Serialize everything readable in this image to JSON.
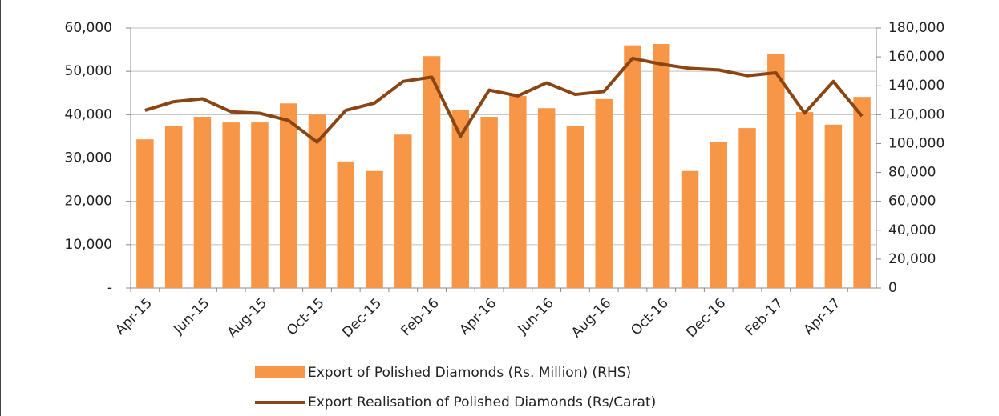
{
  "chart_data": {
    "type": "bar_line",
    "categories": [
      "Apr-15",
      null,
      "Jun-15",
      null,
      "Aug-15",
      null,
      "Oct-15",
      null,
      "Dec-15",
      null,
      "Feb-16",
      null,
      "Apr-16",
      null,
      "Jun-16",
      null,
      "Aug-16",
      null,
      "Oct-16",
      null,
      "Dec-16",
      null,
      "Feb-17",
      null,
      "Apr-17",
      null
    ],
    "series": [
      {
        "name": "Export of Polished Diamonds (Rs. Million) (RHS)",
        "type": "bar",
        "color": "#f79646",
        "values": [
          34300,
          37300,
          39500,
          38200,
          38200,
          42600,
          40000,
          29200,
          27000,
          35400,
          53500,
          41000,
          39500,
          44300,
          41500,
          37300,
          43600,
          56000,
          56300,
          27000,
          33600,
          36900,
          54100,
          40600,
          37700,
          44100
        ]
      },
      {
        "name": "Export Realisation of Polished Diamonds (Rs/Carat)",
        "type": "line",
        "color": "#8b4513",
        "axis": "y2",
        "values": [
          123000,
          129000,
          131000,
          122000,
          121000,
          116000,
          101000,
          123000,
          128000,
          143000,
          146000,
          105000,
          137000,
          133000,
          142000,
          134000,
          136000,
          159000,
          155000,
          152000,
          151000,
          147000,
          149000,
          121000,
          143000,
          119000
        ]
      }
    ],
    "ylim": [
      0,
      60000
    ],
    "yticks": [
      {
        "value": 0,
        "label": "-"
      },
      {
        "value": 10000,
        "label": "10,000"
      },
      {
        "value": 20000,
        "label": "20,000"
      },
      {
        "value": 30000,
        "label": "30,000"
      },
      {
        "value": 40000,
        "label": "40,000"
      },
      {
        "value": 50000,
        "label": "50,000"
      },
      {
        "value": 60000,
        "label": "60,000"
      }
    ],
    "y2lim": [
      0,
      180000
    ],
    "y2ticks": [
      0,
      {
        "value": 20000,
        "label": "20,000"
      },
      {
        "value": 40000,
        "label": "40,000"
      },
      {
        "value": 60000,
        "label": "60,000"
      },
      {
        "value": 80000,
        "label": "80,000"
      },
      {
        "value": 100000,
        "label": "100,000"
      },
      {
        "value": 120000,
        "label": "120,000"
      },
      {
        "value": 140000,
        "label": "140,000"
      },
      {
        "value": 160000,
        "label": "160,000"
      },
      {
        "value": 180000,
        "label": "180,000"
      }
    ],
    "grid": true,
    "legend": "bottom"
  }
}
